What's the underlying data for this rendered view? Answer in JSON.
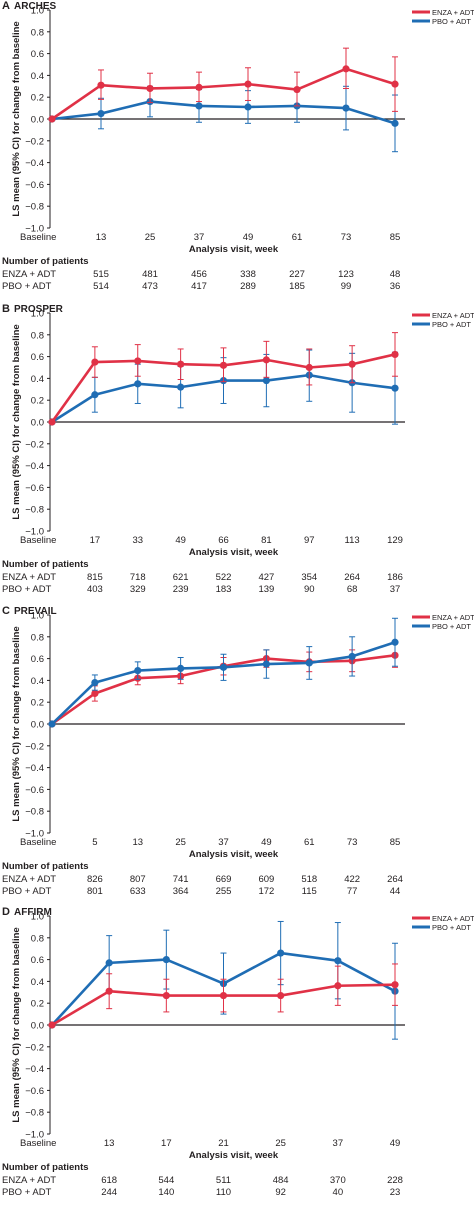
{
  "colors": {
    "enza": "#e03146",
    "pbo": "#1f6db4",
    "text": "#231f20",
    "axis": "#231f20"
  },
  "ylabel": "LS mean (95% CI) for change from baseline",
  "xlabel": "Analysis visit, week",
  "patients_heading": "Number of patients",
  "chart_data": [
    {
      "type": "line",
      "panel": "A",
      "title": "ARCHES",
      "ylim": [
        -1.0,
        1.0
      ],
      "yticks": [
        "1.0",
        "0.8",
        "0.6",
        "0.4",
        "0.2",
        "0.0",
        "−0.2",
        "−0.4",
        "−0.6",
        "−0.8",
        "−1.0"
      ],
      "categories": [
        "Baseline",
        "13",
        "25",
        "37",
        "49",
        "61",
        "73",
        "85"
      ],
      "legend": [
        "ENZA + ADT",
        "PBO + ADT"
      ],
      "series": [
        {
          "name": "ENZA + ADT",
          "values": [
            0,
            0.31,
            0.28,
            0.29,
            0.32,
            0.27,
            0.46,
            0.32
          ],
          "ci_low": [
            0,
            0.18,
            0.15,
            0.16,
            0.17,
            0.12,
            0.28,
            0.07
          ],
          "ci_high": [
            0,
            0.45,
            0.42,
            0.43,
            0.47,
            0.43,
            0.65,
            0.57
          ]
        },
        {
          "name": "PBO + ADT",
          "values": [
            0,
            0.05,
            0.16,
            0.12,
            0.11,
            0.12,
            0.1,
            -0.04
          ],
          "ci_low": [
            0,
            -0.09,
            0.02,
            -0.03,
            -0.04,
            -0.03,
            -0.1,
            -0.3
          ],
          "ci_high": [
            0,
            0.19,
            0.3,
            0.27,
            0.26,
            0.27,
            0.3,
            0.22
          ]
        }
      ],
      "patients": [
        {
          "label": "ENZA + ADT",
          "counts": [
            "515",
            "481",
            "456",
            "338",
            "227",
            "123",
            "48"
          ]
        },
        {
          "label": "PBO + ADT",
          "counts": [
            "514",
            "473",
            "417",
            "289",
            "185",
            "99",
            "36"
          ]
        }
      ]
    },
    {
      "type": "line",
      "panel": "B",
      "title": "PROSPER",
      "ylim": [
        -1.0,
        1.0
      ],
      "yticks": [
        "1.0",
        "0.8",
        "0.6",
        "0.4",
        "0.2",
        "0.0",
        "−0.2",
        "−0.4",
        "−0.6",
        "−0.8",
        "−1.0"
      ],
      "categories": [
        "Baseline",
        "17",
        "33",
        "49",
        "66",
        "81",
        "97",
        "113",
        "129"
      ],
      "legend": [
        "ENZA + ADT",
        "PBO + ADT"
      ],
      "series": [
        {
          "name": "ENZA + ADT",
          "values": [
            0,
            0.55,
            0.56,
            0.53,
            0.52,
            0.57,
            0.5,
            0.53,
            0.62
          ],
          "ci_low": [
            0,
            0.41,
            0.42,
            0.39,
            0.37,
            0.41,
            0.34,
            0.36,
            0.42
          ],
          "ci_high": [
            0,
            0.69,
            0.71,
            0.67,
            0.68,
            0.74,
            0.67,
            0.7,
            0.82
          ]
        },
        {
          "name": "PBO + ADT",
          "values": [
            0,
            0.25,
            0.35,
            0.32,
            0.38,
            0.38,
            0.43,
            0.36,
            0.31
          ],
          "ci_low": [
            0,
            0.09,
            0.17,
            0.13,
            0.17,
            0.14,
            0.19,
            0.09,
            -0.02
          ],
          "ci_high": [
            0,
            0.41,
            0.53,
            0.51,
            0.59,
            0.62,
            0.66,
            0.63,
            0.64
          ]
        }
      ],
      "patients": [
        {
          "label": "ENZA + ADT",
          "counts": [
            "815",
            "718",
            "621",
            "522",
            "427",
            "354",
            "264",
            "186"
          ]
        },
        {
          "label": "PBO + ADT",
          "counts": [
            "403",
            "329",
            "239",
            "183",
            "139",
            "90",
            "68",
            "37"
          ]
        }
      ]
    },
    {
      "type": "line",
      "panel": "C",
      "title": "PREVAIL",
      "ylim": [
        -1.0,
        1.0
      ],
      "yticks": [
        "1.0",
        "0.8",
        "0.6",
        "0.4",
        "0.2",
        "0.0",
        "−0.2",
        "−0.4",
        "−0.6",
        "−0.8",
        "−1.0"
      ],
      "categories": [
        "Baseline",
        "5",
        "13",
        "25",
        "37",
        "49",
        "61",
        "73",
        "85"
      ],
      "legend": [
        "ENZA + ADT",
        "PBO + ADT"
      ],
      "series": [
        {
          "name": "ENZA + ADT",
          "values": [
            0,
            0.28,
            0.42,
            0.44,
            0.53,
            0.6,
            0.57,
            0.58,
            0.63
          ],
          "ci_low": [
            0,
            0.21,
            0.36,
            0.37,
            0.45,
            0.52,
            0.48,
            0.48,
            0.52
          ],
          "ci_high": [
            0,
            0.35,
            0.48,
            0.51,
            0.61,
            0.68,
            0.66,
            0.68,
            0.74
          ]
        },
        {
          "name": "PBO + ADT",
          "values": [
            0,
            0.38,
            0.49,
            0.51,
            0.52,
            0.55,
            0.56,
            0.62,
            0.75
          ],
          "ci_low": [
            0,
            0.31,
            0.41,
            0.41,
            0.4,
            0.42,
            0.41,
            0.44,
            0.53
          ],
          "ci_high": [
            0,
            0.45,
            0.57,
            0.61,
            0.64,
            0.68,
            0.71,
            0.8,
            0.97
          ]
        }
      ],
      "patients": [
        {
          "label": "ENZA + ADT",
          "counts": [
            "826",
            "807",
            "741",
            "669",
            "609",
            "518",
            "422",
            "264"
          ]
        },
        {
          "label": "PBO + ADT",
          "counts": [
            "801",
            "633",
            "364",
            "255",
            "172",
            "115",
            "77",
            "44"
          ]
        }
      ]
    },
    {
      "type": "line",
      "panel": "D",
      "title": "AFFIRM",
      "ylim": [
        -1.0,
        1.0
      ],
      "yticks": [
        "1.0",
        "0.8",
        "0.6",
        "0.4",
        "0.2",
        "0.0",
        "−0.2",
        "−0.4",
        "−0.6",
        "−0.8",
        "−1.0"
      ],
      "categories": [
        "Baseline",
        "13",
        "17",
        "21",
        "25",
        "37",
        "49"
      ],
      "legend": [
        "ENZA + ADT",
        "PBO + ADT"
      ],
      "series": [
        {
          "name": "ENZA + ADT",
          "values": [
            0,
            0.31,
            0.27,
            0.27,
            0.27,
            0.36,
            0.37
          ],
          "ci_low": [
            0,
            0.15,
            0.12,
            0.12,
            0.12,
            0.18,
            0.18
          ],
          "ci_high": [
            0,
            0.47,
            0.42,
            0.42,
            0.42,
            0.54,
            0.56
          ]
        },
        {
          "name": "PBO + ADT",
          "values": [
            0,
            0.57,
            0.6,
            0.38,
            0.66,
            0.59,
            0.31
          ],
          "ci_low": [
            0,
            0.32,
            0.33,
            0.1,
            0.37,
            0.24,
            -0.13
          ],
          "ci_high": [
            0,
            0.82,
            0.87,
            0.66,
            0.95,
            0.94,
            0.75
          ]
        }
      ],
      "patients": [
        {
          "label": "ENZA + ADT",
          "counts": [
            "618",
            "544",
            "511",
            "484",
            "370",
            "228"
          ]
        },
        {
          "label": "PBO + ADT",
          "counts": [
            "244",
            "140",
            "110",
            "92",
            "40",
            "23"
          ]
        }
      ]
    }
  ]
}
